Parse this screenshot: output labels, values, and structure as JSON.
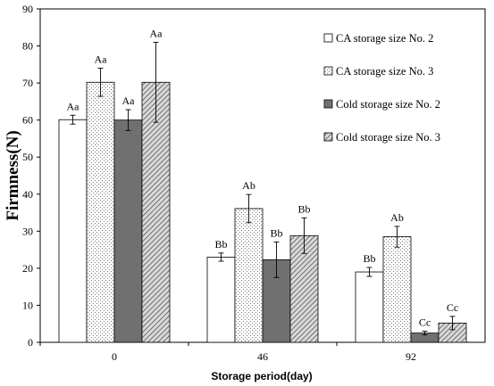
{
  "chart_data": {
    "type": "bar",
    "xlabel": "Storage period(day)",
    "ylabel": "Firmness(N)",
    "ylim": [
      0,
      90
    ],
    "yticks": [
      "0",
      "10",
      "20",
      "30",
      "40",
      "50",
      "60",
      "70",
      "80",
      "90"
    ],
    "categories": [
      "0",
      "46",
      "92"
    ],
    "legend_position": "top-right",
    "grid": false,
    "series": [
      {
        "name": "CA storage size No. 2",
        "pattern": "white",
        "values": [
          60.1,
          23.0,
          19.0
        ],
        "errors": [
          1.2,
          1.1,
          1.2
        ],
        "labels": [
          "Aa",
          "Bb",
          "Bb"
        ]
      },
      {
        "name": "CA storage size No. 3",
        "pattern": "dots",
        "values": [
          70.2,
          36.1,
          28.5
        ],
        "errors": [
          3.8,
          3.8,
          2.8
        ],
        "labels": [
          "Aa",
          "Ab",
          "Ab"
        ]
      },
      {
        "name": "Cold storage size No. 2",
        "pattern": "dark",
        "values": [
          60.0,
          22.3,
          2.5
        ],
        "errors": [
          2.8,
          4.8,
          0.5
        ],
        "labels": [
          "Aa",
          "Bb",
          "Cc"
        ]
      },
      {
        "name": "Cold storage size No. 3",
        "pattern": "hatch",
        "values": [
          70.2,
          28.8,
          5.2
        ],
        "errors": [
          10.8,
          4.8,
          1.8
        ],
        "labels": [
          "Aa",
          "Bb",
          "Cc"
        ]
      }
    ],
    "colors": {
      "dark": "#707070",
      "axis": "#000000",
      "background": "#ffffff"
    }
  }
}
